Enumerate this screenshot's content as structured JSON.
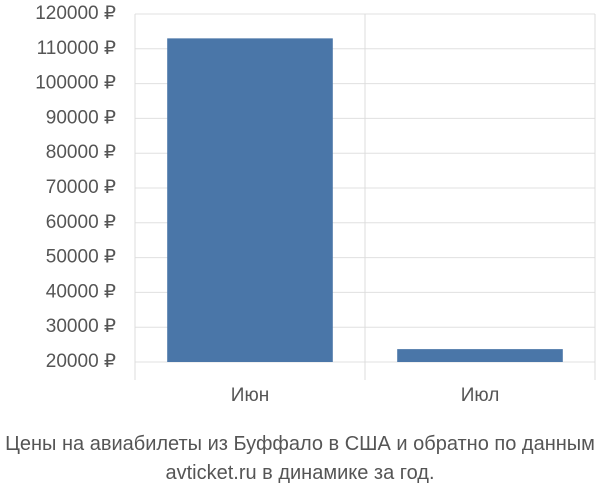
{
  "chart_data": {
    "type": "bar",
    "title": "Цены на авиабилеты из Буффало в США и обратно по данным avticket.ru в динамике за год.",
    "categories": [
      "Июн",
      "Июл"
    ],
    "values": [
      113000,
      23700
    ],
    "color": "#4a76a8",
    "ylim": [
      20000,
      120000
    ],
    "yticks": [
      {
        "value": 20000,
        "label": "20000 ₽"
      },
      {
        "value": 30000,
        "label": "30000 ₽"
      },
      {
        "value": 40000,
        "label": "40000 ₽"
      },
      {
        "value": 50000,
        "label": "50000 ₽"
      },
      {
        "value": 60000,
        "label": "60000 ₽"
      },
      {
        "value": 70000,
        "label": "70000 ₽"
      },
      {
        "value": 80000,
        "label": "80000 ₽"
      },
      {
        "value": 90000,
        "label": "90000 ₽"
      },
      {
        "value": 100000,
        "label": "100000 ₽"
      },
      {
        "value": 110000,
        "label": "110000 ₽"
      },
      {
        "value": 120000,
        "label": "120000 ₽"
      }
    ],
    "grid": true
  }
}
